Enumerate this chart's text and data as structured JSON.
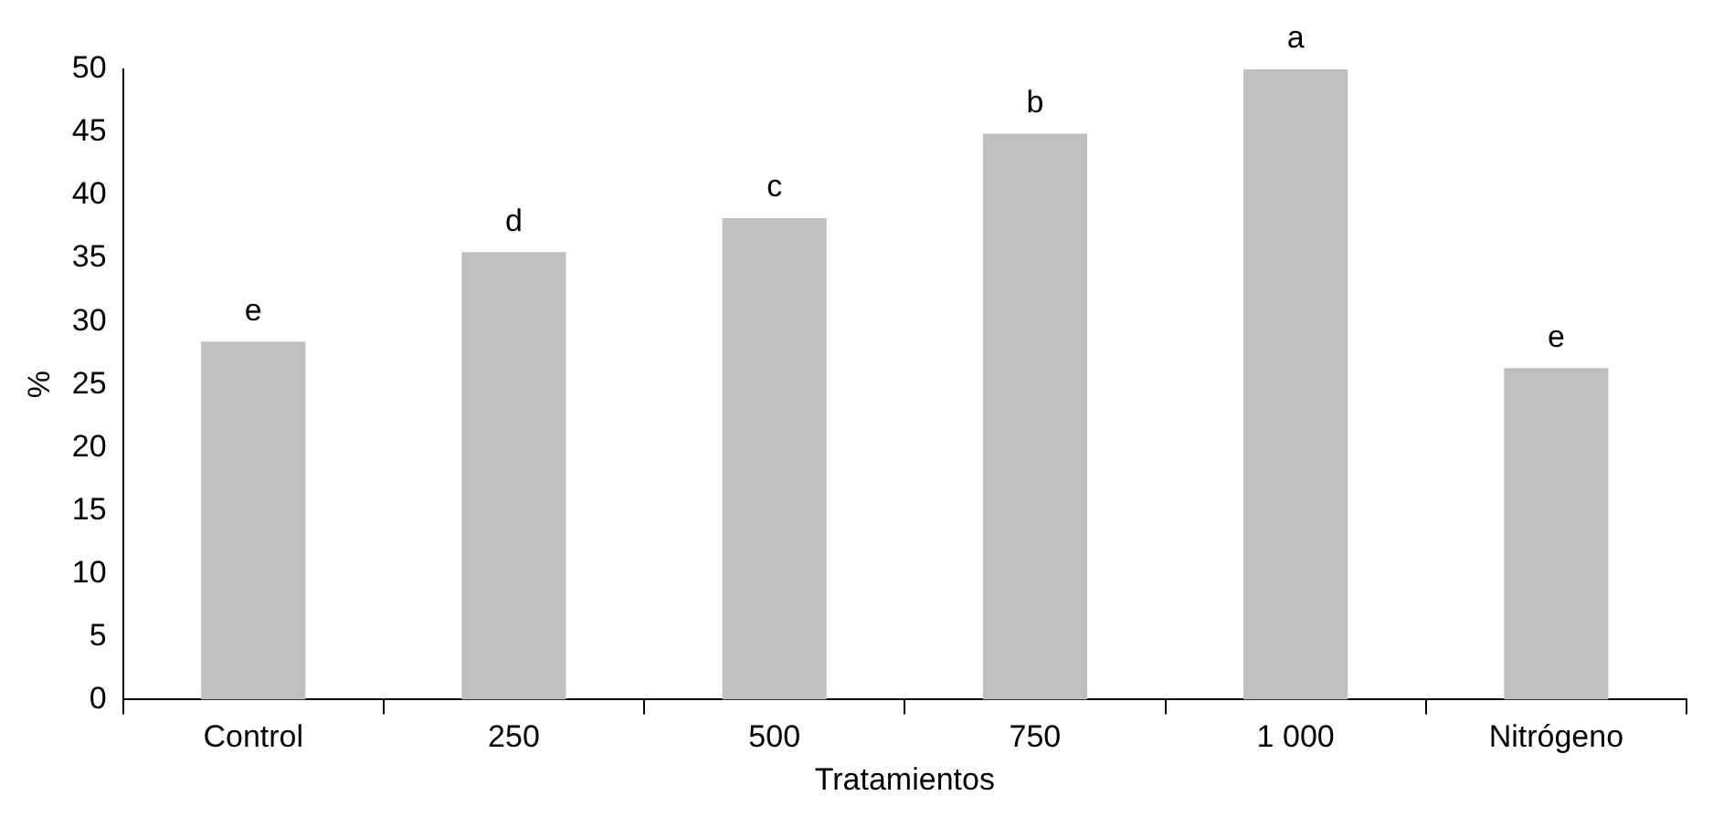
{
  "chart_data": {
    "type": "bar",
    "xlabel": "Tratamientos",
    "ylabel": "%",
    "categories": [
      "Control",
      "250",
      "500",
      "750",
      "1 000",
      "Nitrógeno"
    ],
    "values": [
      28.4,
      35.5,
      38.2,
      44.9,
      50,
      26.3
    ],
    "color": "#bfbfbf",
    "ylim": [
      0,
      50
    ],
    "yticks": [
      0,
      5,
      10,
      15,
      20,
      25,
      30,
      35,
      40,
      45,
      50
    ],
    "annotations": [
      {
        "text": "e",
        "x": "Control",
        "y": 28.4
      },
      {
        "text": "d",
        "x": "250",
        "y": 35.5
      },
      {
        "text": "c",
        "x": "500",
        "y": 38.2
      },
      {
        "text": "b",
        "x": "750",
        "y": 44.9
      },
      {
        "text": "a",
        "x": "1 000",
        "y": 50
      },
      {
        "text": "e",
        "x": "Nitrógeno",
        "y": 26.3
      }
    ]
  }
}
